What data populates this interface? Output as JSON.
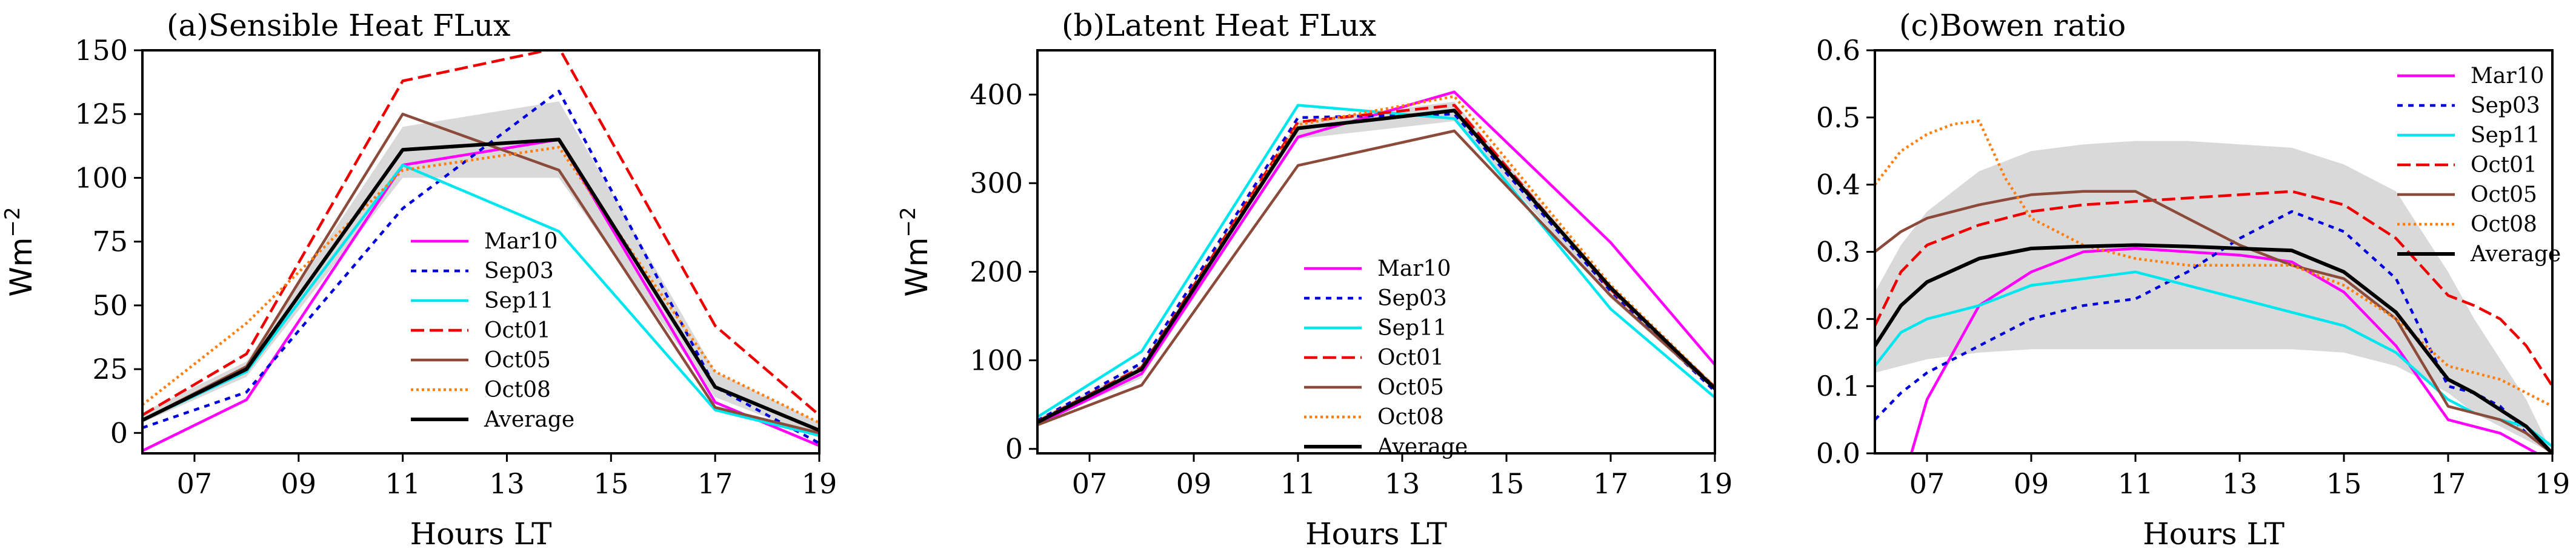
{
  "chart_data": [
    {
      "type": "line",
      "id": "a",
      "title": "(a)Sensible Heat FLux",
      "xlabel": "Hours LT",
      "ylabel": "Wm",
      "ylabel_sup": "−2",
      "xlim": [
        6,
        19
      ],
      "ylim": [
        -8,
        150
      ],
      "xticks": [
        7,
        9,
        11,
        13,
        15,
        17,
        19
      ],
      "xtick_labels": [
        "07",
        "09",
        "11",
        "13",
        "15",
        "17",
        "19"
      ],
      "yticks": [
        0,
        25,
        50,
        75,
        100,
        125,
        150
      ],
      "ytick_labels": [
        "0",
        "25",
        "50",
        "75",
        "100",
        "125",
        "150"
      ],
      "legend_position": "center",
      "band": {
        "x": [
          6,
          8,
          11,
          14,
          17,
          19
        ],
        "lower": [
          4,
          22,
          100,
          100,
          14,
          -2
        ],
        "upper": [
          8,
          28,
          120,
          130,
          24,
          4
        ]
      },
      "series": [
        {
          "name": "Mar10",
          "color": "#ff00ff",
          "dash": "solid",
          "x": [
            6,
            8,
            11,
            14,
            17,
            19
          ],
          "y": [
            -7,
            13,
            105,
            115,
            12,
            -5
          ]
        },
        {
          "name": "Sep03",
          "color": "#0000dd",
          "dash": "dotted",
          "x": [
            6,
            8,
            11,
            14,
            17,
            19
          ],
          "y": [
            2,
            16,
            88,
            134,
            18,
            -4
          ]
        },
        {
          "name": "Sep11",
          "color": "#00e5ee",
          "dash": "solid",
          "x": [
            6,
            8,
            11,
            14,
            17,
            19
          ],
          "y": [
            5,
            24,
            105,
            79,
            9,
            -1
          ]
        },
        {
          "name": "Oct01",
          "color": "#ee0000",
          "dash": "dashed",
          "x": [
            6,
            8,
            11,
            14,
            17,
            19
          ],
          "y": [
            7,
            31,
            138,
            151,
            42,
            7
          ]
        },
        {
          "name": "Oct05",
          "color": "#8b4a3a",
          "dash": "solid",
          "x": [
            6,
            8,
            11,
            14,
            17,
            19
          ],
          "y": [
            5,
            26,
            125,
            103,
            10,
            0
          ]
        },
        {
          "name": "Oct08",
          "color": "#ff7f0e",
          "dash": "dotdense",
          "x": [
            6,
            8,
            11,
            14,
            17,
            19
          ],
          "y": [
            11,
            43,
            103,
            112,
            24,
            4
          ]
        },
        {
          "name": "Average",
          "color": "#000000",
          "dash": "solid",
          "x": [
            6,
            8,
            11,
            14,
            17,
            19
          ],
          "y": [
            5,
            25,
            111,
            115,
            18,
            1
          ]
        }
      ]
    },
    {
      "type": "line",
      "id": "b",
      "title": "(b)Latent Heat FLux",
      "xlabel": "Hours LT",
      "ylabel": "Wm",
      "ylabel_sup": "−2",
      "xlim": [
        6,
        19
      ],
      "ylim": [
        -5,
        450
      ],
      "xticks": [
        7,
        9,
        11,
        13,
        15,
        17,
        19
      ],
      "xtick_labels": [
        "07",
        "09",
        "11",
        "13",
        "15",
        "17",
        "19"
      ],
      "yticks": [
        0,
        100,
        200,
        300,
        400
      ],
      "ytick_labels": [
        "0",
        "100",
        "200",
        "300",
        "400"
      ],
      "legend_position": "lower-center",
      "band": {
        "x": [
          6,
          8,
          11,
          14,
          17,
          19
        ],
        "lower": [
          28,
          80,
          350,
          370,
          170,
          65
        ],
        "upper": [
          34,
          95,
          370,
          392,
          185,
          72
        ]
      },
      "series": [
        {
          "name": "Mar10",
          "color": "#ff00ff",
          "dash": "solid",
          "x": [
            6,
            8,
            11,
            14,
            17,
            19
          ],
          "y": [
            28,
            85,
            352,
            403,
            233,
            95
          ]
        },
        {
          "name": "Sep03",
          "color": "#0000dd",
          "dash": "dotted",
          "x": [
            6,
            8,
            11,
            14,
            17,
            19
          ],
          "y": [
            32,
            97,
            374,
            378,
            178,
            65
          ]
        },
        {
          "name": "Sep11",
          "color": "#00e5ee",
          "dash": "solid",
          "x": [
            6,
            8,
            11,
            14,
            17,
            19
          ],
          "y": [
            36,
            110,
            388,
            373,
            158,
            58
          ]
        },
        {
          "name": "Oct01",
          "color": "#ee0000",
          "dash": "dashed",
          "x": [
            6,
            8,
            11,
            14,
            17,
            19
          ],
          "y": [
            31,
            92,
            369,
            388,
            180,
            70
          ]
        },
        {
          "name": "Oct05",
          "color": "#8b4a3a",
          "dash": "solid",
          "x": [
            6,
            8,
            11,
            14,
            17,
            19
          ],
          "y": [
            27,
            72,
            320,
            359,
            173,
            68
          ]
        },
        {
          "name": "Oct08",
          "color": "#ff7f0e",
          "dash": "dotdense",
          "x": [
            6,
            8,
            11,
            14,
            17,
            19
          ],
          "y": [
            30,
            90,
            366,
            398,
            185,
            70
          ]
        },
        {
          "name": "Average",
          "color": "#000000",
          "dash": "solid",
          "x": [
            6,
            8,
            11,
            14,
            17,
            19
          ],
          "y": [
            30,
            90,
            362,
            382,
            182,
            68
          ]
        }
      ]
    },
    {
      "type": "line",
      "id": "c",
      "title": "(c)Bowen ratio",
      "xlabel": "Hours LT",
      "ylabel": "",
      "ylabel_sup": "",
      "xlim": [
        6,
        19
      ],
      "ylim": [
        0,
        0.6
      ],
      "xticks": [
        7,
        9,
        11,
        13,
        15,
        17,
        19
      ],
      "xtick_labels": [
        "07",
        "09",
        "11",
        "13",
        "15",
        "17",
        "19"
      ],
      "yticks": [
        0.0,
        0.1,
        0.2,
        0.3,
        0.4,
        0.5,
        0.6
      ],
      "ytick_labels": [
        "0.0",
        "0.1",
        "0.2",
        "0.3",
        "0.4",
        "0.5",
        "0.6"
      ],
      "legend_position": "top-right",
      "band": {
        "x": [
          6,
          6.5,
          7,
          8,
          9,
          10,
          11,
          12,
          13,
          14,
          15,
          16,
          17,
          17.5,
          18,
          18.5,
          19
        ],
        "lower": [
          0.12,
          0.13,
          0.14,
          0.15,
          0.155,
          0.155,
          0.155,
          0.155,
          0.155,
          0.155,
          0.15,
          0.13,
          0.09,
          0.06,
          0.04,
          0.02,
          0.0
        ],
        "upper": [
          0.24,
          0.31,
          0.36,
          0.42,
          0.45,
          0.46,
          0.465,
          0.465,
          0.46,
          0.455,
          0.43,
          0.39,
          0.27,
          0.2,
          0.14,
          0.08,
          0.0
        ]
      },
      "series": [
        {
          "name": "Mar10",
          "color": "#ff00ff",
          "dash": "solid",
          "x": [
            6.7,
            7,
            7.5,
            8,
            9,
            10,
            11,
            12,
            13,
            14,
            15,
            16,
            17,
            18,
            18.7
          ],
          "y": [
            0.0,
            0.08,
            0.15,
            0.22,
            0.27,
            0.3,
            0.305,
            0.3,
            0.295,
            0.285,
            0.24,
            0.16,
            0.05,
            0.03,
            0.0
          ]
        },
        {
          "name": "Sep03",
          "color": "#0000dd",
          "dash": "dotted",
          "x": [
            6,
            6.5,
            7,
            8,
            9,
            10,
            11,
            12,
            13,
            14,
            15,
            16,
            17,
            17.5,
            18,
            18.5,
            19
          ],
          "y": [
            0.05,
            0.09,
            0.12,
            0.16,
            0.2,
            0.22,
            0.23,
            0.27,
            0.32,
            0.36,
            0.33,
            0.26,
            0.1,
            0.09,
            0.07,
            0.03,
            0.0
          ]
        },
        {
          "name": "Sep11",
          "color": "#00e5ee",
          "dash": "solid",
          "x": [
            6,
            6.5,
            7,
            8,
            9,
            10,
            11,
            12,
            13,
            14,
            15,
            16,
            17,
            17.5,
            18,
            18.5,
            19
          ],
          "y": [
            0.13,
            0.18,
            0.2,
            0.22,
            0.25,
            0.26,
            0.27,
            0.25,
            0.23,
            0.21,
            0.19,
            0.15,
            0.08,
            0.06,
            0.05,
            0.04,
            0.01
          ]
        },
        {
          "name": "Oct01",
          "color": "#ee0000",
          "dash": "dashed",
          "x": [
            6,
            6.5,
            7,
            8,
            9,
            10,
            11,
            12,
            13,
            14,
            15,
            16,
            17,
            17.5,
            18,
            18.5,
            19
          ],
          "y": [
            0.19,
            0.27,
            0.31,
            0.34,
            0.36,
            0.37,
            0.375,
            0.38,
            0.385,
            0.39,
            0.37,
            0.32,
            0.235,
            0.22,
            0.2,
            0.16,
            0.1
          ]
        },
        {
          "name": "Oct05",
          "color": "#8b4a3a",
          "dash": "solid",
          "x": [
            6,
            6.5,
            7,
            8,
            9,
            10,
            11,
            12,
            13,
            14,
            15,
            16,
            17,
            17.5,
            18,
            18.5,
            19
          ],
          "y": [
            0.3,
            0.33,
            0.35,
            0.37,
            0.385,
            0.39,
            0.39,
            0.35,
            0.31,
            0.28,
            0.26,
            0.2,
            0.07,
            0.06,
            0.05,
            0.03,
            0.0
          ]
        },
        {
          "name": "Oct08",
          "color": "#ff7f0e",
          "dash": "dotdense",
          "x": [
            6,
            6.5,
            7,
            7.5,
            8,
            8.5,
            9,
            10,
            11,
            12,
            13,
            14,
            15,
            16,
            17,
            17.5,
            18,
            18.5,
            19
          ],
          "y": [
            0.4,
            0.45,
            0.475,
            0.49,
            0.495,
            0.41,
            0.35,
            0.31,
            0.29,
            0.28,
            0.28,
            0.28,
            0.25,
            0.2,
            0.13,
            0.12,
            0.11,
            0.09,
            0.07
          ]
        },
        {
          "name": "Average",
          "color": "#000000",
          "dash": "solid",
          "x": [
            6,
            6.5,
            7,
            8,
            9,
            10,
            11,
            12,
            13,
            14,
            15,
            16,
            17,
            17.5,
            18,
            18.5,
            19
          ],
          "y": [
            0.16,
            0.22,
            0.255,
            0.29,
            0.305,
            0.308,
            0.31,
            0.308,
            0.305,
            0.302,
            0.27,
            0.21,
            0.11,
            0.09,
            0.065,
            0.04,
            0.0
          ]
        }
      ]
    }
  ]
}
